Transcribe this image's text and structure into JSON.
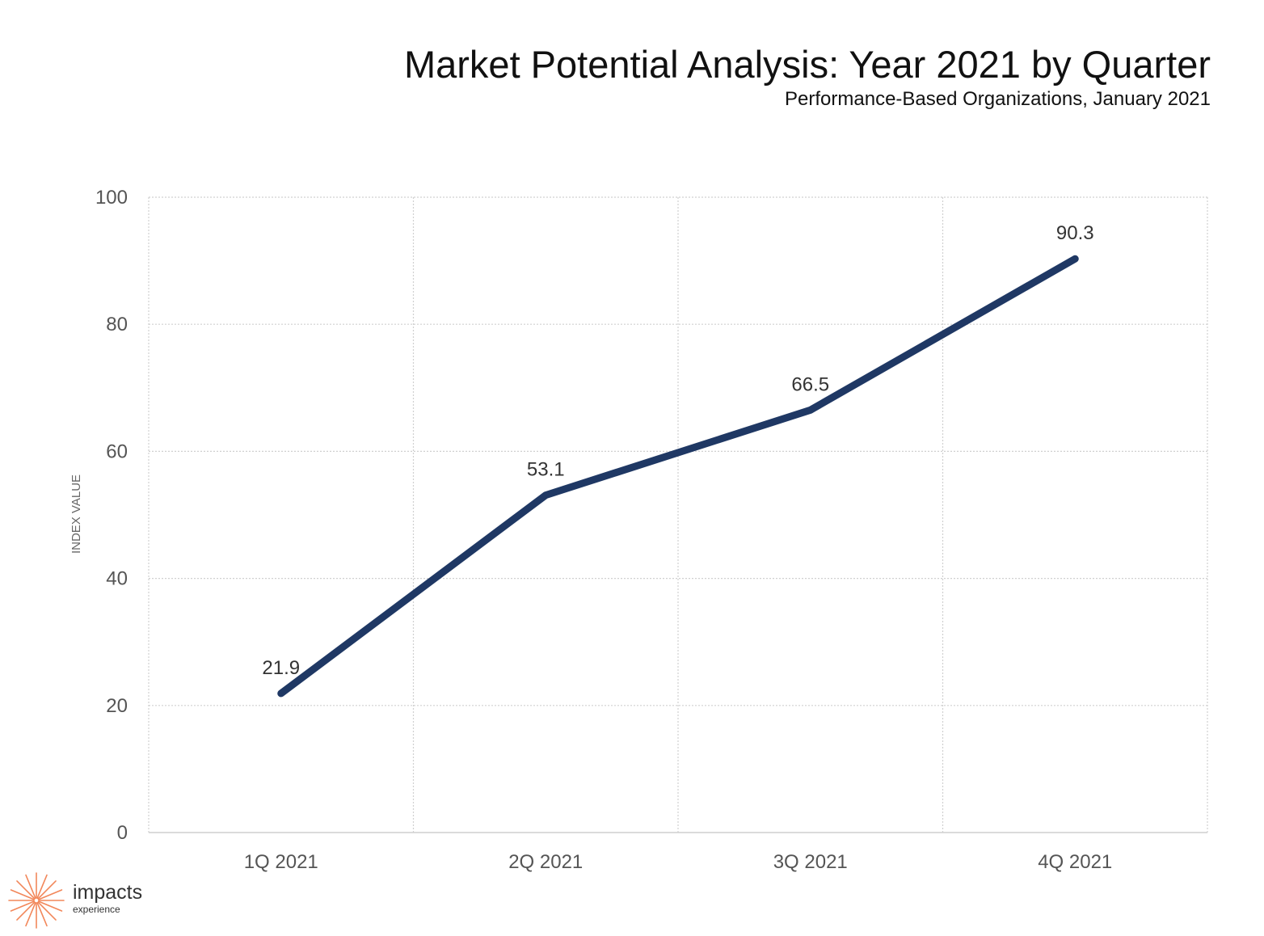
{
  "chart_data": {
    "type": "line",
    "title": "Market Potential Analysis: Year 2021 by Quarter",
    "subtitle": "Performance-Based Organizations, January 2021",
    "ylabel": "INDEX VALUE",
    "xlabel": "",
    "categories": [
      "1Q 2021",
      "2Q 2021",
      "3Q 2021",
      "4Q 2021"
    ],
    "series": [
      {
        "values": [
          21.9,
          53.1,
          66.5,
          90.3
        ],
        "labels": [
          "21.9",
          "53.1",
          "66.5",
          "90.3"
        ]
      }
    ],
    "ylim": [
      0,
      100
    ],
    "yticks": [
      0,
      20,
      40,
      60,
      80,
      100
    ],
    "grid": true,
    "line_color": "#1f3864"
  },
  "logo": {
    "name": "impacts",
    "tagline": "experience",
    "icon": "starburst-icon",
    "color": "#f2875a"
  }
}
